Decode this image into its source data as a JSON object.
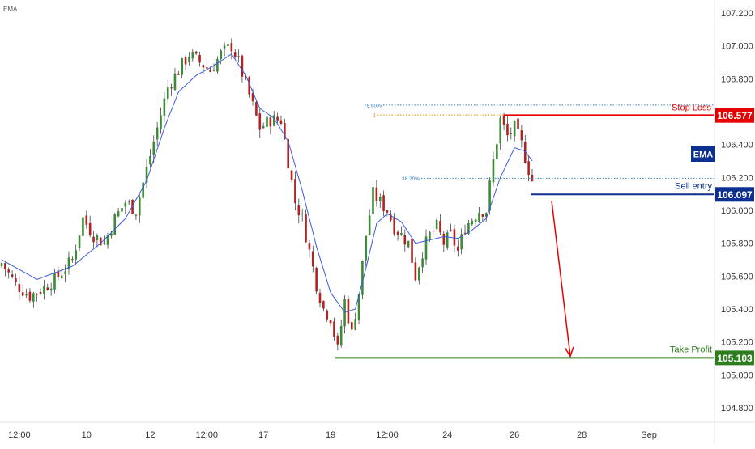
{
  "indicator_label": "EMA",
  "colors": {
    "up": "#3d8b37",
    "down": "#b22222",
    "wick": "#2a2a2a",
    "ema": "#3b5bdb",
    "stop": "#e60000",
    "entry": "#0d2f8f",
    "target": "#2e7d1f",
    "fib_blue": "#2f7fc1",
    "fib_orange": "#e08a00",
    "axis_text": "#333333",
    "grid": "#f3f3f3"
  },
  "chart_data": {
    "type": "candlestick",
    "y_axis": {
      "min": 104.7,
      "max": 107.25,
      "ticks": [
        "107.200",
        "107.000",
        "106.800",
        "106.600",
        "106.400",
        "106.200",
        "106.000",
        "105.800",
        "105.600",
        "105.400",
        "105.200",
        "105.000",
        "104.800"
      ]
    },
    "x_axis": {
      "ticks": [
        {
          "label": "12:00",
          "index": 5
        },
        {
          "label": "10",
          "index": 24
        },
        {
          "label": "12",
          "index": 42
        },
        {
          "label": "12:00",
          "index": 58
        },
        {
          "label": "17",
          "index": 74
        },
        {
          "label": "19",
          "index": 93
        },
        {
          "label": "12:00",
          "index": 109
        },
        {
          "label": "24",
          "index": 126
        },
        {
          "label": "26",
          "index": 145
        },
        {
          "label": "28",
          "index": 164
        },
        {
          "label": "Sep",
          "index": 183
        }
      ]
    },
    "close_path": [
      [
        0,
        105.68
      ],
      [
        4,
        105.55
      ],
      [
        8,
        105.48
      ],
      [
        12,
        105.53
      ],
      [
        16,
        105.6
      ],
      [
        20,
        105.7
      ],
      [
        23,
        105.95
      ],
      [
        26,
        105.85
      ],
      [
        29,
        105.8
      ],
      [
        32,
        105.95
      ],
      [
        35,
        106.05
      ],
      [
        38,
        106.0
      ],
      [
        41,
        106.25
      ],
      [
        44,
        106.5
      ],
      [
        47,
        106.75
      ],
      [
        50,
        106.85
      ],
      [
        53,
        106.95
      ],
      [
        56,
        106.9
      ],
      [
        59,
        106.85
      ],
      [
        62,
        106.95
      ],
      [
        65,
        107.0
      ],
      [
        67,
        106.9
      ],
      [
        70,
        106.7
      ],
      [
        73,
        106.5
      ],
      [
        76,
        106.55
      ],
      [
        79,
        106.55
      ],
      [
        81,
        106.3
      ],
      [
        83,
        106.05
      ],
      [
        85,
        105.95
      ],
      [
        87,
        105.75
      ],
      [
        89,
        105.55
      ],
      [
        91,
        105.4
      ],
      [
        93,
        105.35
      ],
      [
        95,
        105.15
      ],
      [
        97,
        105.45
      ],
      [
        99,
        105.25
      ],
      [
        101,
        105.5
      ],
      [
        103,
        105.85
      ],
      [
        105,
        106.1
      ],
      [
        107,
        106.05
      ],
      [
        109,
        106.0
      ],
      [
        111,
        105.9
      ],
      [
        113,
        105.85
      ],
      [
        115,
        105.8
      ],
      [
        117,
        105.6
      ],
      [
        119,
        105.75
      ],
      [
        121,
        105.85
      ],
      [
        123,
        105.9
      ],
      [
        125,
        105.8
      ],
      [
        127,
        105.85
      ],
      [
        129,
        105.75
      ],
      [
        131,
        105.9
      ],
      [
        133,
        105.95
      ],
      [
        135,
        106.0
      ],
      [
        137,
        106.0
      ],
      [
        139,
        106.3
      ],
      [
        141,
        106.55
      ],
      [
        143,
        106.45
      ],
      [
        145,
        106.5
      ],
      [
        147,
        106.4
      ],
      [
        149,
        106.25
      ],
      [
        150,
        106.18
      ]
    ],
    "ema_path": [
      [
        0,
        105.7
      ],
      [
        10,
        105.58
      ],
      [
        20,
        105.66
      ],
      [
        28,
        105.8
      ],
      [
        35,
        105.95
      ],
      [
        41,
        106.18
      ],
      [
        46,
        106.5
      ],
      [
        50,
        106.72
      ],
      [
        55,
        106.82
      ],
      [
        60,
        106.88
      ],
      [
        65,
        106.95
      ],
      [
        69,
        106.82
      ],
      [
        73,
        106.62
      ],
      [
        77,
        106.56
      ],
      [
        81,
        106.42
      ],
      [
        85,
        106.12
      ],
      [
        89,
        105.78
      ],
      [
        93,
        105.5
      ],
      [
        97,
        105.38
      ],
      [
        100,
        105.4
      ],
      [
        103,
        105.65
      ],
      [
        106,
        105.92
      ],
      [
        109,
        105.98
      ],
      [
        113,
        105.93
      ],
      [
        117,
        105.8
      ],
      [
        121,
        105.82
      ],
      [
        125,
        105.84
      ],
      [
        129,
        105.83
      ],
      [
        133,
        105.88
      ],
      [
        137,
        105.95
      ],
      [
        141,
        106.2
      ],
      [
        145,
        106.38
      ],
      [
        148,
        106.36
      ],
      [
        150,
        106.3
      ]
    ],
    "levels": [
      {
        "name": "Stop Loss",
        "price": "106.577",
        "value": 106.577
      },
      {
        "name": "Sell entry",
        "price": "106.097",
        "value": 106.097
      },
      {
        "name": "Take Profit",
        "price": "105.103",
        "value": 105.103
      }
    ],
    "fib_levels": [
      {
        "label": "78.60%",
        "value": 106.64
      },
      {
        "label": "1",
        "value": 106.58
      },
      {
        "label": "38.20%",
        "value": 106.195
      }
    ]
  }
}
